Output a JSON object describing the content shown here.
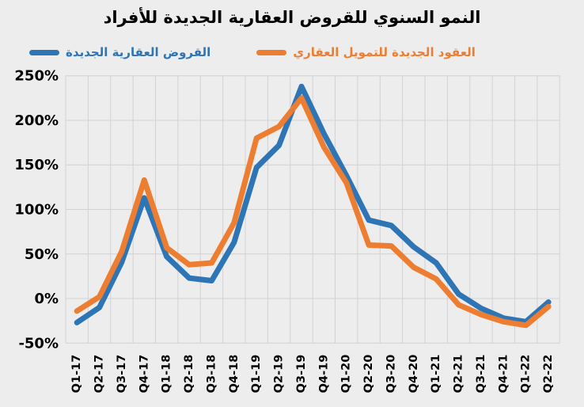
{
  "title": "النمو السنوي للقروض العقارية الجديدة للأفراد",
  "legend": {
    "items": [
      {
        "label": "القروض العقارية الجديدة",
        "color": "#2E75B6"
      },
      {
        "label": "العقود الجديدة للتمويل العقاري",
        "color": "#ED7D31"
      }
    ]
  },
  "colors": {
    "background": "#EDEDED",
    "gridline": "#D2D2D2",
    "axis_text": "#000000",
    "series_blue": "#2E75B6",
    "series_orange": "#ED7D31"
  },
  "chart_data": {
    "type": "line",
    "title": "النمو السنوي للقروض العقارية الجديدة للأفراد",
    "categories": [
      "Q1-17",
      "Q2-17",
      "Q3-17",
      "Q4-17",
      "Q1-18",
      "Q2-18",
      "Q3-18",
      "Q4-18",
      "Q1-19",
      "Q2-19",
      "Q3-19",
      "Q4-19",
      "Q1-20",
      "Q2-20",
      "Q3-20",
      "Q4-20",
      "Q1-21",
      "Q2-21",
      "Q3-21",
      "Q4-21",
      "Q1-22",
      "Q2-22"
    ],
    "series": [
      {
        "name": "القروض العقارية الجديدة",
        "color": "#2E75B6",
        "values": [
          -27,
          -10,
          41,
          113,
          47,
          23,
          20,
          63,
          147,
          172,
          238,
          185,
          138,
          88,
          82,
          58,
          40,
          5,
          -11,
          -22,
          -26,
          -4
        ]
      },
      {
        "name": "العقود الجديدة للتمويل العقاري",
        "color": "#ED7D31",
        "values": [
          -14,
          2,
          53,
          133,
          57,
          38,
          40,
          85,
          180,
          193,
          225,
          170,
          130,
          60,
          59,
          35,
          22,
          -7,
          -18,
          -26,
          -30,
          -9
        ]
      }
    ],
    "xlabel": "",
    "ylabel": "",
    "ylim": [
      -50,
      250
    ],
    "ytick_step": 50,
    "ytick_labels": [
      "-50%",
      "0%",
      "50%",
      "100%",
      "150%",
      "200%",
      "250%"
    ],
    "grid": true,
    "legend_position": "top"
  }
}
